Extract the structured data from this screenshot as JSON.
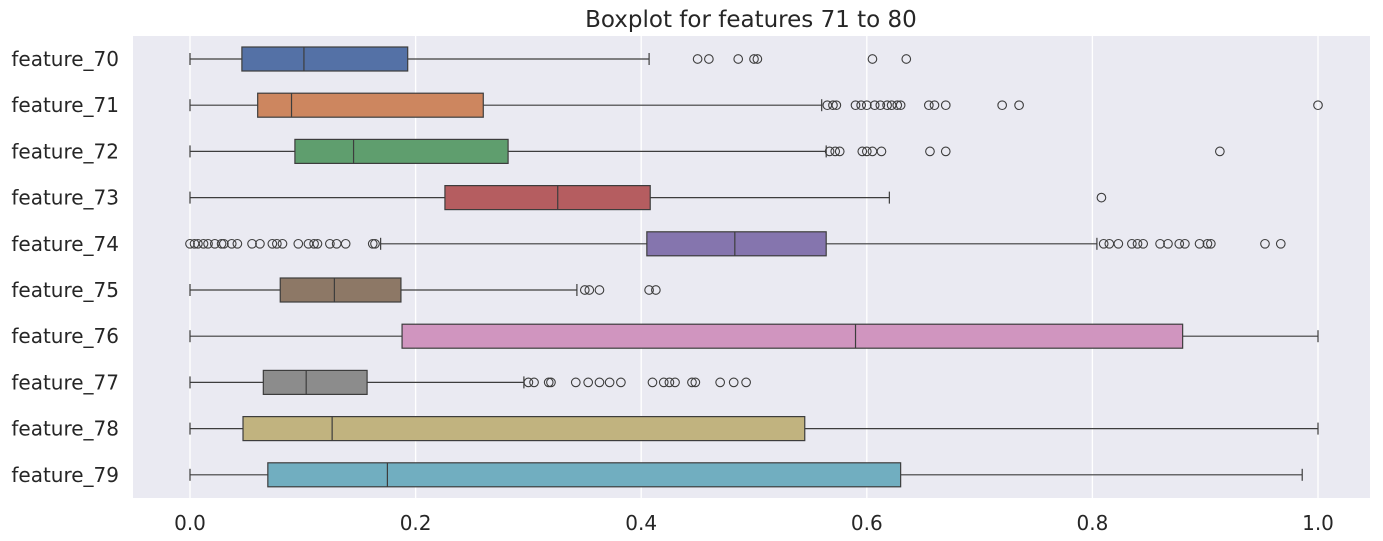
{
  "chart_data": {
    "type": "boxplot",
    "orientation": "horizontal",
    "title": "Boxplot for features 71 to 80",
    "xlabel": "",
    "ylabel": "",
    "xlim": [
      -0.05,
      1.05
    ],
    "xticks": [
      0.0,
      0.2,
      0.4,
      0.6,
      0.8,
      1.0
    ],
    "xtick_labels": [
      "0.0",
      "0.2",
      "0.4",
      "0.6",
      "0.8",
      "1.0"
    ],
    "grid": true,
    "background": "#eaeaf2",
    "series": [
      {
        "name": "feature_70",
        "color": "#5471a6",
        "whisker_low": 0.0,
        "q1": 0.046,
        "median": 0.101,
        "q3": 0.193,
        "whisker_high": 0.407,
        "outliers": [
          0.45,
          0.46,
          0.486,
          0.5,
          0.503,
          0.605,
          0.635
        ]
      },
      {
        "name": "feature_71",
        "color": "#cd865f",
        "whisker_low": 0.0,
        "q1": 0.06,
        "median": 0.09,
        "q3": 0.26,
        "whisker_high": 0.56,
        "outliers": [
          0.565,
          0.57,
          0.573,
          0.59,
          0.595,
          0.6,
          0.607,
          0.612,
          0.618,
          0.622,
          0.627,
          0.63,
          0.655,
          0.66,
          0.67,
          0.72,
          0.735,
          1.0
        ]
      },
      {
        "name": "feature_72",
        "color": "#5f9e6e",
        "whisker_low": 0.0,
        "q1": 0.093,
        "median": 0.145,
        "q3": 0.282,
        "whisker_high": 0.564,
        "outliers": [
          0.567,
          0.572,
          0.576,
          0.596,
          0.6,
          0.605,
          0.613,
          0.656,
          0.67,
          0.913
        ]
      },
      {
        "name": "feature_73",
        "color": "#b55d60",
        "whisker_low": 0.0,
        "q1": 0.226,
        "median": 0.326,
        "q3": 0.408,
        "whisker_high": 0.62,
        "outliers": [
          0.808
        ]
      },
      {
        "name": "feature_74",
        "color": "#8575ae",
        "whisker_low": 0.169,
        "q1": 0.405,
        "median": 0.483,
        "q3": 0.564,
        "whisker_high": 0.804,
        "outliers": [
          0.0,
          0.004,
          0.007,
          0.012,
          0.016,
          0.022,
          0.028,
          0.03,
          0.037,
          0.042,
          0.055,
          0.062,
          0.073,
          0.077,
          0.082,
          0.096,
          0.105,
          0.11,
          0.113,
          0.124,
          0.13,
          0.138,
          0.162,
          0.164,
          0.81,
          0.815,
          0.823,
          0.835,
          0.84,
          0.845,
          0.86,
          0.867,
          0.877,
          0.882,
          0.895,
          0.902,
          0.905,
          0.953,
          0.967
        ]
      },
      {
        "name": "feature_75",
        "color": "#8d7866",
        "whisker_low": 0.0,
        "q1": 0.08,
        "median": 0.128,
        "q3": 0.187,
        "whisker_high": 0.343,
        "outliers": [
          0.35,
          0.354,
          0.363,
          0.407,
          0.413
        ]
      },
      {
        "name": "feature_76",
        "color": "#d095bf",
        "whisker_low": 0.0,
        "q1": 0.188,
        "median": 0.59,
        "q3": 0.88,
        "whisker_high": 1.0,
        "outliers": []
      },
      {
        "name": "feature_77",
        "color": "#8c8c8c",
        "whisker_low": 0.0,
        "q1": 0.065,
        "median": 0.103,
        "q3": 0.157,
        "whisker_high": 0.296,
        "outliers": [
          0.3,
          0.305,
          0.318,
          0.32,
          0.342,
          0.353,
          0.363,
          0.372,
          0.382,
          0.41,
          0.42,
          0.425,
          0.43,
          0.445,
          0.448,
          0.47,
          0.482,
          0.493
        ]
      },
      {
        "name": "feature_78",
        "color": "#c1b37f",
        "whisker_low": 0.0,
        "q1": 0.047,
        "median": 0.126,
        "q3": 0.545,
        "whisker_high": 1.0,
        "outliers": []
      },
      {
        "name": "feature_79",
        "color": "#71aec0",
        "whisker_low": 0.0,
        "q1": 0.069,
        "median": 0.175,
        "q3": 0.63,
        "whisker_high": 0.986,
        "outliers": []
      }
    ]
  }
}
